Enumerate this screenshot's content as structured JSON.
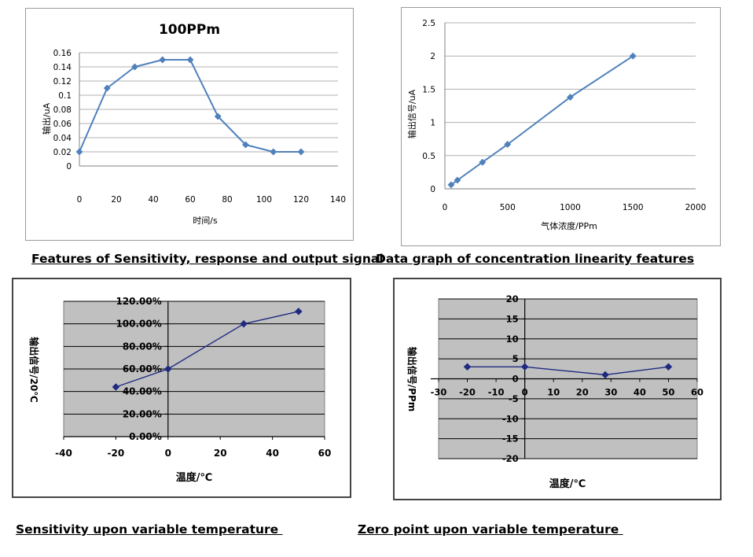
{
  "chart_data": [
    {
      "type": "line",
      "title": "100PPm",
      "xlabel": "时间/s",
      "ylabel": "输出/uA",
      "x": [
        0,
        15,
        30,
        45,
        60,
        75,
        90,
        105,
        120
      ],
      "series": [
        {
          "name": "output",
          "values": [
            0.02,
            0.11,
            0.14,
            0.15,
            0.15,
            0.07,
            0.03,
            0.02,
            0.02
          ]
        }
      ],
      "xlim": [
        0,
        140
      ],
      "ylim": [
        0,
        0.16
      ],
      "xticks": [
        "0",
        "20",
        "40",
        "60",
        "80",
        "100",
        "120",
        "140"
      ],
      "yticks": [
        "0",
        "0.02",
        "0.04",
        "0.06",
        "0.08",
        "0.1",
        "0.12",
        "0.14",
        "0.16"
      ],
      "grid": "horizontal",
      "color": "#4f81bd",
      "caption": "Features of Sensitivity, response and output signal"
    },
    {
      "type": "line",
      "title": "",
      "xlabel": "气体浓度/PPm",
      "ylabel": "输出信号/uA",
      "x": [
        50,
        100,
        300,
        500,
        1000,
        1500
      ],
      "series": [
        {
          "name": "signal",
          "values": [
            0.06,
            0.13,
            0.4,
            0.67,
            1.38,
            2.0
          ]
        }
      ],
      "xlim": [
        0,
        2000
      ],
      "ylim": [
        0,
        2.5
      ],
      "xticks": [
        "0",
        "500",
        "1000",
        "1500",
        "2000"
      ],
      "yticks": [
        "0",
        "0.5",
        "1",
        "1.5",
        "2",
        "2.5"
      ],
      "grid": "horizontal",
      "color": "#4f81bd",
      "caption": "Data graph of concentration linearity features"
    },
    {
      "type": "line",
      "title": "",
      "xlabel": "温度/℃",
      "ylabel": "输出信号/20℃",
      "x": [
        -20,
        0,
        29,
        50
      ],
      "series": [
        {
          "name": "sensitivity",
          "values": [
            44,
            60,
            100,
            111
          ]
        }
      ],
      "xlim": [
        -40,
        60
      ],
      "ylim": [
        0,
        120
      ],
      "xticks": [
        "-40",
        "-20",
        "0",
        "20",
        "40",
        "60"
      ],
      "yticks": [
        "0.00%",
        "20.00%",
        "40.00%",
        "60.00%",
        "80.00%",
        "100.00%",
        "120.00%"
      ],
      "grid": "horizontal",
      "color": "#1f2a80",
      "caption": "Sensitivity upon variable temperature "
    },
    {
      "type": "line",
      "title": "",
      "xlabel": "温度/℃",
      "ylabel": "输出信号/PPm",
      "x": [
        -20,
        0,
        28,
        50
      ],
      "series": [
        {
          "name": "zero point",
          "values": [
            3,
            3,
            1,
            3
          ]
        }
      ],
      "xlim": [
        -30,
        60
      ],
      "ylim": [
        -20,
        20
      ],
      "xticks": [
        "-30",
        "-20",
        "-10",
        "0",
        "10",
        "20",
        "30",
        "40",
        "50",
        "60"
      ],
      "yticks": [
        "-20",
        "-15",
        "-10",
        "-5",
        "0",
        "5",
        "10",
        "15",
        "20"
      ],
      "grid": "horizontal",
      "color": "#1f2a80",
      "caption": "Zero point upon variable temperature "
    }
  ]
}
